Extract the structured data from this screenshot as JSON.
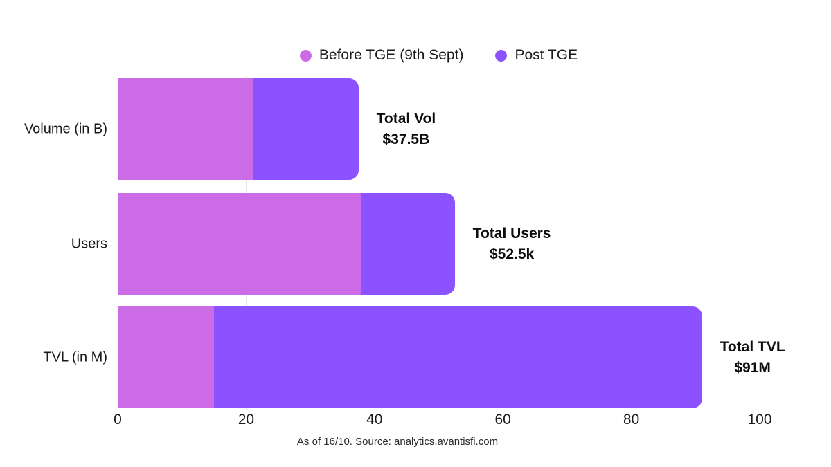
{
  "legend": {
    "before_label": "Before TGE (9th Sept)",
    "post_label": "Post TGE"
  },
  "footer": {
    "text": "As of 16/10. Source: analytics.avantisfi.com"
  },
  "colors": {
    "before_tge": "#cb6ce6",
    "post_tge": "#8c52ff",
    "gridline": "#e7e7e7"
  },
  "chart_data": {
    "type": "bar",
    "orientation": "horizontal",
    "stacked": true,
    "grid": "vertical",
    "legend_position": "top-center",
    "categories": [
      "Volume (in B)",
      "Users",
      "TVL (in M)"
    ],
    "series": [
      {
        "name": "Before TGE (9th Sept)",
        "color": "#cb6ce6",
        "values": [
          21,
          38,
          15
        ]
      },
      {
        "name": "Post TGE",
        "color": "#8c52ff",
        "values": [
          16.5,
          14.5,
          76
        ]
      }
    ],
    "totals": [
      37.5,
      52.5,
      91
    ],
    "annotations": [
      {
        "title": "Total Vol",
        "value": "$37.5B"
      },
      {
        "title": "Total Users",
        "value": "$52.5k"
      },
      {
        "title": "Total TVL",
        "value": "$91M"
      }
    ],
    "xlabel": "",
    "ylabel": "",
    "xlim": [
      0,
      100
    ],
    "xticks": [
      0,
      20,
      40,
      60,
      80,
      100
    ]
  }
}
